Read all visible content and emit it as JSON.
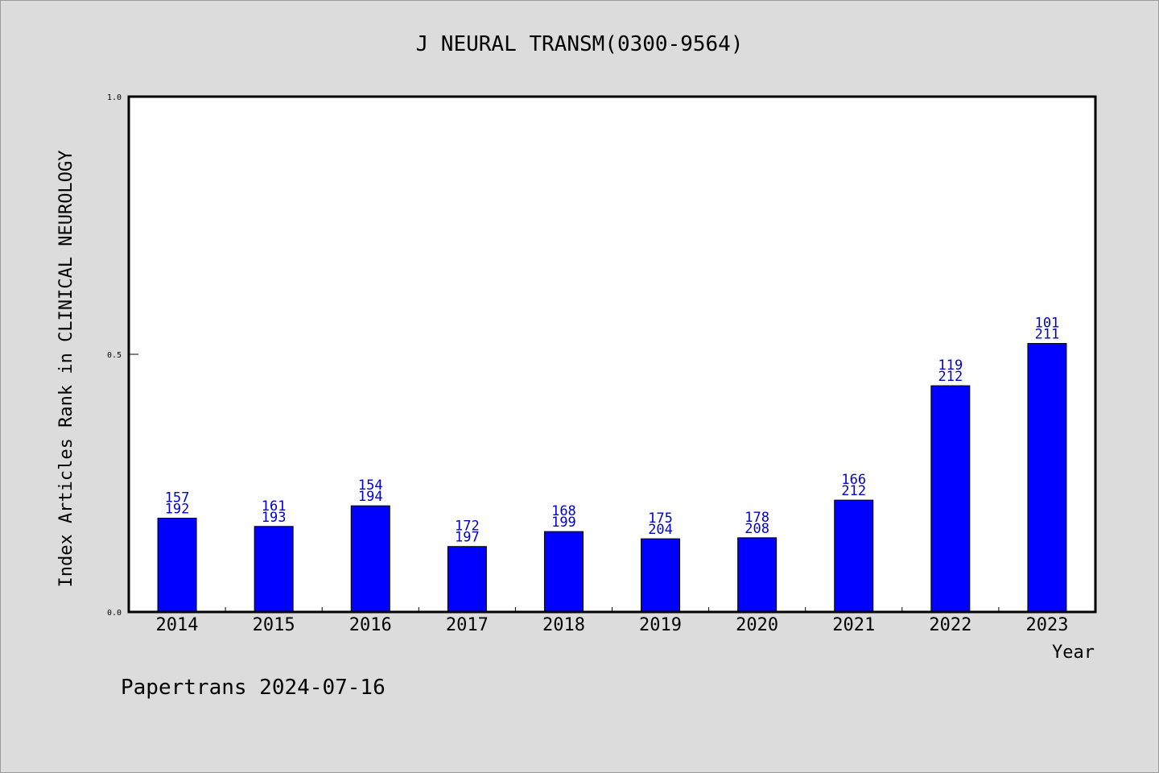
{
  "chart_data": {
    "type": "bar",
    "title": "J NEURAL TRANSM(0300-9564)",
    "xlabel": "Year",
    "ylabel": "Index Articles Rank in CLINICAL NEUROLOGY",
    "ylim": [
      0,
      1.0
    ],
    "yticks": [
      "0.0",
      "0.5",
      "1.0"
    ],
    "categories": [
      "2014",
      "2015",
      "2016",
      "2017",
      "2018",
      "2019",
      "2020",
      "2021",
      "2022",
      "2023"
    ],
    "values": [
      0.182,
      0.166,
      0.206,
      0.127,
      0.156,
      0.142,
      0.144,
      0.217,
      0.439,
      0.521
    ],
    "rank_labels": [
      "157",
      "161",
      "154",
      "172",
      "168",
      "175",
      "178",
      "166",
      "119",
      "101"
    ],
    "total_labels": [
      "192",
      "193",
      "194",
      "197",
      "199",
      "204",
      "208",
      "212",
      "212",
      "211"
    ],
    "bar_color": "#0000ff",
    "label_color": "#0000cc",
    "grid": false
  },
  "footer": {
    "text": "Papertrans 2024-07-16"
  }
}
